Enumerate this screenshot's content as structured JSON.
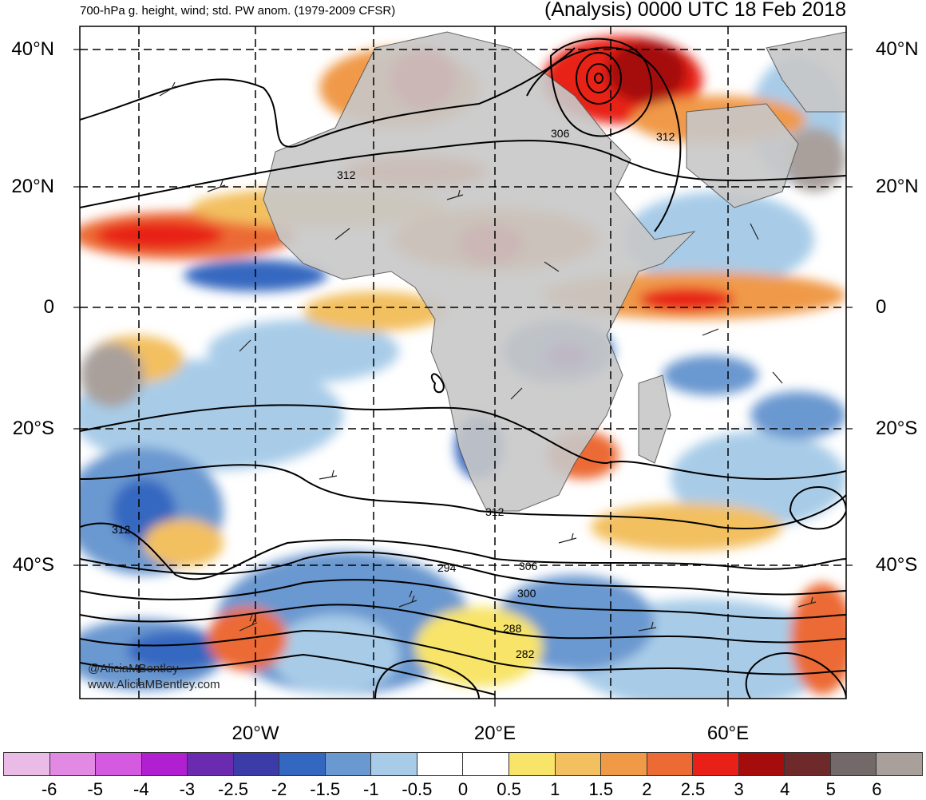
{
  "header": {
    "left_title": "700-hPa g. height, wind; std. PW anom. (1979-2009 CFSR)",
    "right_title": "(Analysis) 0000 UTC 18 Feb 2018"
  },
  "axes": {
    "lat_labels": [
      "40°N",
      "20°N",
      "0",
      "20°S",
      "40°S"
    ],
    "lon_labels": [
      "20°W",
      "20°E",
      "60°E"
    ]
  },
  "contour_labels": [
    "306",
    "312",
    "312",
    "312",
    "312",
    "294",
    "306",
    "300",
    "288",
    "282"
  ],
  "credits": {
    "twitter": "@AliciaMBentley",
    "website": "www.AliciaMBentley.com"
  },
  "colorbar": {
    "colors": [
      "#ebbbe8",
      "#e28ae3",
      "#d45ae0",
      "#b020d0",
      "#6a2bb0",
      "#3b3ca8",
      "#3468c0",
      "#6a98d0",
      "#a8cce8",
      "#ffffff",
      "#ffffff",
      "#f8e468",
      "#f3c060",
      "#f09a48",
      "#ec6a34",
      "#e82018",
      "#a50c0c",
      "#6e2a2a",
      "#736969",
      "#a9a09c"
    ],
    "ticks": [
      "-6",
      "-5",
      "-4",
      "-3",
      "-2.5",
      "-2",
      "-1.5",
      "-1",
      "-0.5",
      "0",
      "0.5",
      "1",
      "1.5",
      "2",
      "2.5",
      "3",
      "4",
      "5",
      "6"
    ]
  }
}
